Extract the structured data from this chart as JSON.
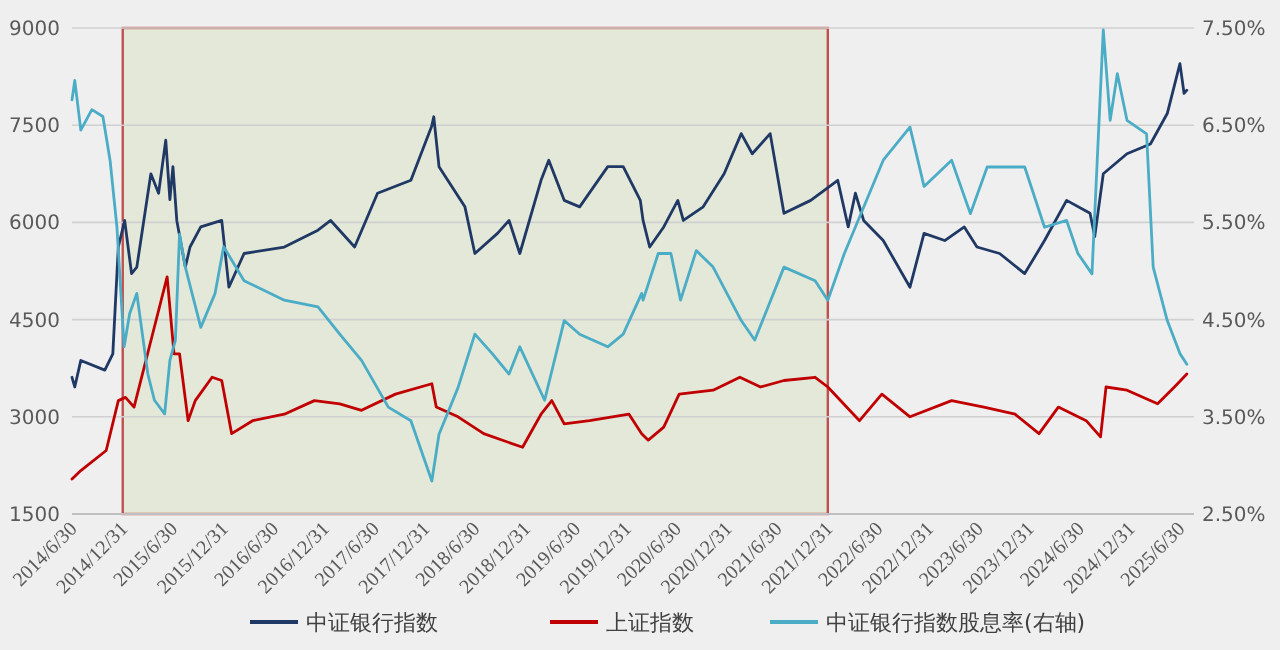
{
  "chart_data": {
    "type": "line",
    "legend": "bottom",
    "grid": "y",
    "line_style": "solid",
    "xlim": [
      "2014-06-30",
      "2025-08-20"
    ],
    "xticks": [
      {
        "value": "2014-06-30",
        "label": "2014/6/30"
      },
      {
        "value": "2014-12-31",
        "label": "2014/12/31"
      },
      {
        "value": "2015-06-30",
        "label": "2015/6/30"
      },
      {
        "value": "2015-12-31",
        "label": "2015/12/31"
      },
      {
        "value": "2016-06-30",
        "label": "2016/6/30"
      },
      {
        "value": "2016-12-31",
        "label": "2016/12/31"
      },
      {
        "value": "2017-06-30",
        "label": "2017/6/30"
      },
      {
        "value": "2017-12-31",
        "label": "2017/12/31"
      },
      {
        "value": "2018-06-30",
        "label": "2018/6/30"
      },
      {
        "value": "2018-12-31",
        "label": "2018/12/31"
      },
      {
        "value": "2019-06-30",
        "label": "2019/6/30"
      },
      {
        "value": "2019-12-31",
        "label": "2019/12/31"
      },
      {
        "value": "2020-06-30",
        "label": "2020/6/30"
      },
      {
        "value": "2020-12-31",
        "label": "2020/12/31"
      },
      {
        "value": "2021-06-30",
        "label": "2021/6/30"
      },
      {
        "value": "2021-12-31",
        "label": "2021/12/31"
      },
      {
        "value": "2022-06-30",
        "label": "2022/6/30"
      },
      {
        "value": "2022-12-31",
        "label": "2022/12/31"
      },
      {
        "value": "2023-06-30",
        "label": "2023/6/30"
      },
      {
        "value": "2023-12-31",
        "label": "2023/12/31"
      },
      {
        "value": "2024-06-30",
        "label": "2024/6/30"
      },
      {
        "value": "2024-12-31",
        "label": "2024/12/31"
      },
      {
        "value": "2025-06-30",
        "label": "2025/6/30"
      }
    ],
    "ylim": [
      1500,
      9000
    ],
    "yticks": [
      1500,
      3000,
      4500,
      6000,
      7500,
      9000
    ],
    "y2lim": [
      2.5,
      7.5
    ],
    "y2ticks": [
      {
        "value": 2.5,
        "label": "2.50%"
      },
      {
        "value": 3.5,
        "label": "3.50%"
      },
      {
        "value": 4.5,
        "label": "4.50%"
      },
      {
        "value": 5.5,
        "label": "5.50%"
      },
      {
        "value": 6.5,
        "label": "6.50%"
      },
      {
        "value": 7.5,
        "label": "7.50%"
      }
    ],
    "bands": [
      {
        "axis": "x",
        "from": "2014-12-31",
        "to": "2021-12-31",
        "color": "#e3e8d9"
      }
    ],
    "series": [
      {
        "name": "中证银行指数",
        "color": "#1f3864",
        "x": [
          "2014-06-30",
          "2014-07-10",
          "2014-08-01",
          "2014-10-27",
          "2014-11-25",
          "2014-12-15",
          "2015-01-07",
          "2015-02-01",
          "2015-02-20",
          "2015-04-12",
          "2015-05-10",
          "2015-06-05",
          "2015-06-20",
          "2015-07-01",
          "2015-07-15",
          "2015-08-15",
          "2015-09-01",
          "2015-10-10",
          "2015-12-25",
          "2016-01-20",
          "2016-03-15",
          "2016-08-08",
          "2016-12-08",
          "2017-01-23",
          "2017-04-20",
          "2017-07-12",
          "2017-11-10",
          "2018-01-24",
          "2018-02-01",
          "2018-02-20",
          "2018-05-25",
          "2018-06-30",
          "2018-09-20",
          "2018-11-01",
          "2018-12-10",
          "2019-02-25",
          "2019-03-25",
          "2019-05-20",
          "2019-07-15",
          "2019-10-25",
          "2019-12-20",
          "2020-02-20",
          "2020-03-01",
          "2020-03-25",
          "2020-05-15",
          "2020-07-05",
          "2020-07-25",
          "2020-10-05",
          "2020-12-20",
          "2021-02-20",
          "2021-04-01",
          "2021-06-05",
          "2021-07-25",
          "2021-10-30",
          "2022-02-05",
          "2022-03-15",
          "2022-04-10",
          "2022-05-10",
          "2022-07-20",
          "2022-10-25",
          "2022-12-15",
          "2023-02-28",
          "2023-05-10",
          "2023-06-25",
          "2023-09-15",
          "2023-12-15",
          "2024-02-25",
          "2024-05-15",
          "2024-08-08",
          "2024-08-25",
          "2024-09-25",
          "2024-12-20",
          "2025-03-15",
          "2025-05-15",
          "2025-06-30",
          "2025-07-15",
          "2025-07-25"
        ],
        "values": [
          3610,
          3460,
          3870,
          3720,
          3970,
          5620,
          6030,
          5210,
          5310,
          6750,
          6450,
          7270,
          6350,
          6860,
          6030,
          5310,
          5620,
          5930,
          6030,
          5000,
          5520,
          5620,
          5880,
          6030,
          5620,
          6450,
          6650,
          7480,
          7630,
          6860,
          6240,
          5520,
          5830,
          6030,
          5520,
          6650,
          6960,
          6340,
          6240,
          6860,
          6860,
          6340,
          6030,
          5620,
          5930,
          6340,
          6030,
          6240,
          6750,
          7370,
          7060,
          7370,
          6140,
          6340,
          6650,
          5930,
          6450,
          6030,
          5720,
          5000,
          5830,
          5720,
          5930,
          5620,
          5520,
          5210,
          5720,
          6340,
          6140,
          5780,
          6750,
          7060,
          7210,
          7680,
          8450,
          7990,
          8040
        ]
      },
      {
        "name": "上证指数",
        "color": "#c00000",
        "x": [
          "2014-06-30",
          "2014-08-01",
          "2014-11-01",
          "2014-12-15",
          "2015-01-10",
          "2015-02-10",
          "2015-04-25",
          "2015-06-10",
          "2015-07-05",
          "2015-07-25",
          "2015-08-25",
          "2015-09-20",
          "2015-11-20",
          "2015-12-25",
          "2016-01-30",
          "2016-04-15",
          "2016-08-08",
          "2016-11-25",
          "2017-02-25",
          "2017-05-15",
          "2017-09-15",
          "2018-01-25",
          "2018-02-10",
          "2018-04-30",
          "2018-08-01",
          "2018-12-20",
          "2019-02-25",
          "2019-04-05",
          "2019-05-20",
          "2019-08-20",
          "2020-01-10",
          "2020-02-25",
          "2020-03-20",
          "2020-05-15",
          "2020-07-10",
          "2020-11-10",
          "2021-02-15",
          "2021-05-01",
          "2021-07-25",
          "2021-11-15",
          "2021-12-31",
          "2022-04-25",
          "2022-07-15",
          "2022-10-25",
          "2023-03-25",
          "2023-07-20",
          "2023-11-10",
          "2024-02-05",
          "2024-04-15",
          "2024-07-25",
          "2024-09-15",
          "2024-10-05",
          "2024-12-20",
          "2025-04-10",
          "2025-06-10",
          "2025-07-25"
        ],
        "values": [
          2040,
          2170,
          2480,
          3250,
          3300,
          3150,
          4390,
          5160,
          3970,
          3970,
          2940,
          3250,
          3610,
          3560,
          2740,
          2940,
          3040,
          3250,
          3200,
          3100,
          3350,
          3510,
          3150,
          3000,
          2740,
          2530,
          3040,
          3250,
          2890,
          2940,
          3040,
          2740,
          2640,
          2840,
          3350,
          3410,
          3610,
          3460,
          3560,
          3610,
          3460,
          2940,
          3350,
          3000,
          3250,
          3150,
          3040,
          2740,
          3150,
          2940,
          2690,
          3460,
          3410,
          3200,
          3460,
          3660
        ]
      },
      {
        "name": "中证银行指数股息率(右轴)",
        "color": "#4bacc6",
        "axis": "y2",
        "x": [
          "2014-06-30",
          "2014-07-10",
          "2014-08-01",
          "2014-09-10",
          "2014-10-20",
          "2014-11-15",
          "2014-12-10",
          "2015-01-05",
          "2015-01-25",
          "2015-02-20",
          "2015-04-01",
          "2015-04-25",
          "2015-06-01",
          "2015-06-20",
          "2015-07-10",
          "2015-07-25",
          "2015-08-15",
          "2015-10-10",
          "2015-12-01",
          "2016-01-01",
          "2016-03-15",
          "2016-08-08",
          "2016-12-08",
          "2017-02-25",
          "2017-05-15",
          "2017-08-20",
          "2017-11-10",
          "2018-01-25",
          "2018-02-20",
          "2018-04-30",
          "2018-06-30",
          "2018-09-01",
          "2018-11-01",
          "2018-12-10",
          "2019-03-10",
          "2019-05-20",
          "2019-07-15",
          "2019-10-25",
          "2019-12-20",
          "2020-02-25",
          "2020-03-01",
          "2020-04-25",
          "2020-06-10",
          "2020-07-15",
          "2020-09-10",
          "2020-11-10",
          "2021-02-20",
          "2021-04-10",
          "2021-07-25",
          "2021-11-15",
          "2021-12-31",
          "2022-03-01",
          "2022-07-20",
          "2022-10-25",
          "2022-12-15",
          "2023-03-25",
          "2023-06-01",
          "2023-08-01",
          "2023-12-15",
          "2024-02-25",
          "2024-05-15",
          "2024-06-25",
          "2024-08-15",
          "2024-09-25",
          "2024-10-20",
          "2024-11-15",
          "2024-12-20",
          "2025-03-01",
          "2025-03-25",
          "2025-05-15",
          "2025-06-30",
          "2025-07-25"
        ],
        "values": [
          6.76,
          6.96,
          6.45,
          6.66,
          6.59,
          6.14,
          5.45,
          4.22,
          4.56,
          4.77,
          3.94,
          3.67,
          3.53,
          4.08,
          4.29,
          5.38,
          5.04,
          4.42,
          4.77,
          5.25,
          4.9,
          4.7,
          4.63,
          4.35,
          4.08,
          3.6,
          3.46,
          2.84,
          3.32,
          3.8,
          4.35,
          4.15,
          3.94,
          4.22,
          3.67,
          4.49,
          4.35,
          4.22,
          4.35,
          4.77,
          4.7,
          5.18,
          5.18,
          4.7,
          5.21,
          5.04,
          4.49,
          4.29,
          5.04,
          4.9,
          4.7,
          5.18,
          6.14,
          6.48,
          5.87,
          6.14,
          5.59,
          6.07,
          6.07,
          5.45,
          5.52,
          5.18,
          4.97,
          7.48,
          6.55,
          7.03,
          6.55,
          6.41,
          5.04,
          4.49,
          4.15,
          4.04
        ]
      }
    ]
  }
}
